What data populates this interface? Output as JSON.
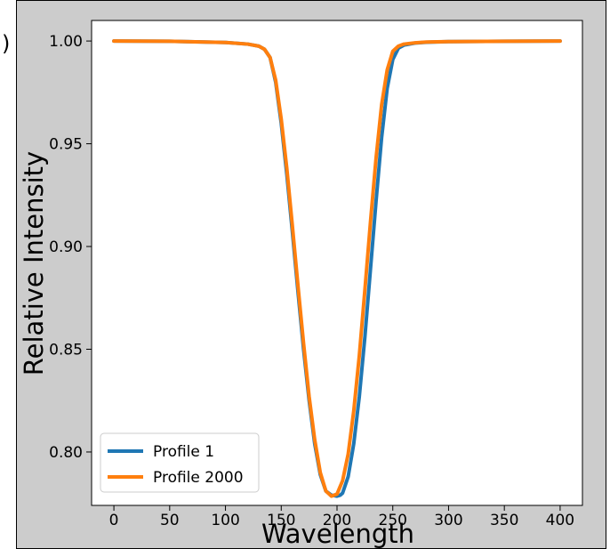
{
  "chart_data": {
    "type": "line",
    "title": "",
    "xlabel": "Wavelength",
    "ylabel": "Relative Intensity",
    "xlim": [
      -20,
      420
    ],
    "ylim": [
      0.774,
      1.01
    ],
    "xticks": [
      0,
      50,
      100,
      150,
      200,
      250,
      300,
      350,
      400
    ],
    "yticks": [
      0.8,
      0.85,
      0.9,
      0.95,
      1.0
    ],
    "ytick_labels": [
      "0.80",
      "0.85",
      "0.90",
      "0.95",
      "1.00"
    ],
    "grid": false,
    "legend_position": "lower-left",
    "series": [
      {
        "name": "Profile 1",
        "color": "#1f77b4",
        "x": [
          0,
          50,
          100,
          120,
          130,
          135,
          140,
          145,
          150,
          155,
          160,
          165,
          170,
          175,
          180,
          185,
          190,
          195,
          200,
          203,
          205,
          210,
          215,
          220,
          225,
          230,
          235,
          240,
          245,
          250,
          255,
          260,
          270,
          280,
          300,
          350,
          400
        ],
        "y": [
          1.0,
          0.9999,
          0.9993,
          0.9985,
          0.9975,
          0.996,
          0.992,
          0.98,
          0.96,
          0.935,
          0.907,
          0.878,
          0.85,
          0.825,
          0.804,
          0.789,
          0.781,
          0.779,
          0.7785,
          0.779,
          0.78,
          0.788,
          0.804,
          0.827,
          0.856,
          0.889,
          0.922,
          0.953,
          0.977,
          0.991,
          0.9965,
          0.998,
          0.999,
          0.9994,
          0.9997,
          0.9999,
          1.0
        ]
      },
      {
        "name": "Profile 2000",
        "color": "#ff7f0e",
        "x": [
          0,
          50,
          100,
          120,
          130,
          135,
          140,
          145,
          150,
          155,
          160,
          165,
          170,
          175,
          180,
          185,
          190,
          195,
          200,
          205,
          210,
          215,
          220,
          225,
          230,
          235,
          240,
          245,
          250,
          255,
          260,
          270,
          280,
          300,
          350,
          400
        ],
        "y": [
          1.0,
          0.9999,
          0.9993,
          0.9985,
          0.9975,
          0.996,
          0.992,
          0.981,
          0.962,
          0.938,
          0.91,
          0.881,
          0.853,
          0.827,
          0.806,
          0.79,
          0.781,
          0.7785,
          0.7795,
          0.786,
          0.799,
          0.82,
          0.847,
          0.879,
          0.912,
          0.943,
          0.969,
          0.986,
          0.995,
          0.9975,
          0.9985,
          0.9991,
          0.9995,
          0.9997,
          0.9999,
          1.0
        ]
      }
    ],
    "frame_label_fragment": ")"
  }
}
